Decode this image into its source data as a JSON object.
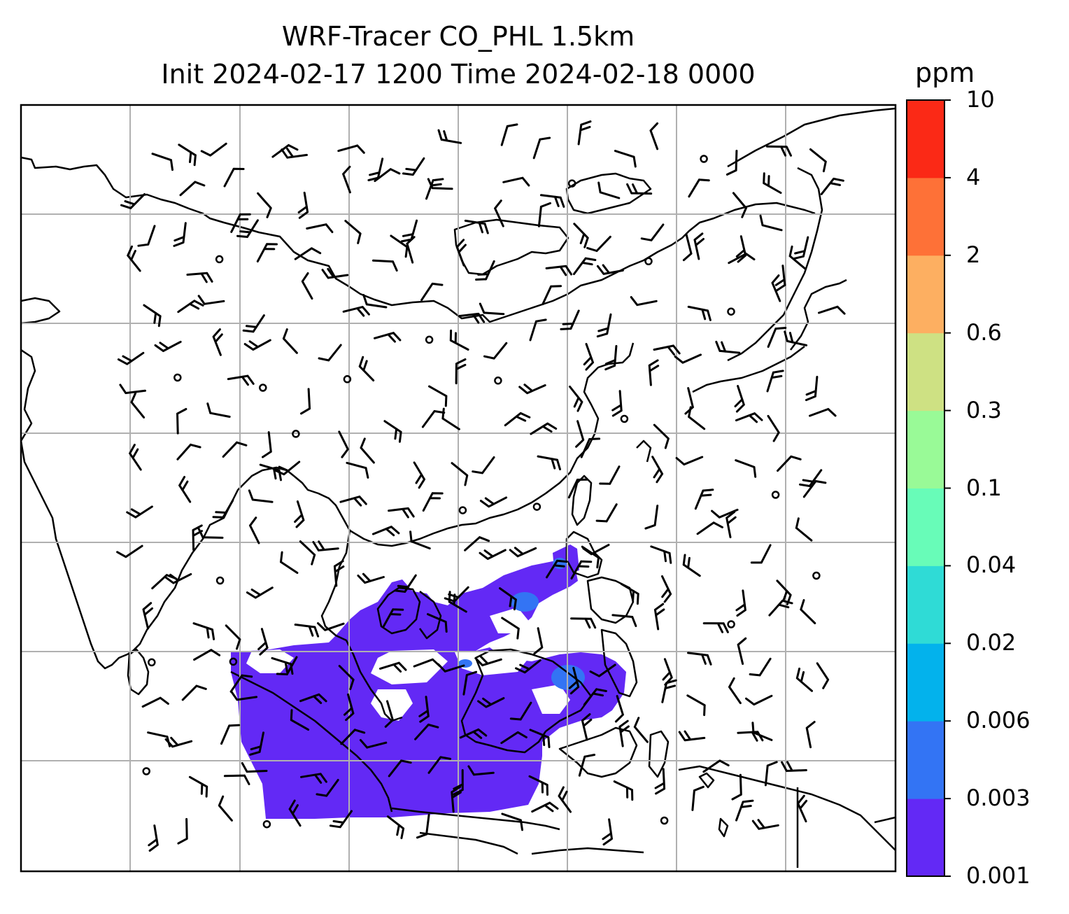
{
  "title": {
    "line1": "WRF-Tracer CO_PHL 1.5km",
    "line2": "Init 2024-02-17 1200 Time 2024-02-18 0000"
  },
  "colorbar": {
    "unit": "ppm",
    "levels": [
      "0.001",
      "0.003",
      "0.006",
      "0.02",
      "0.04",
      "0.1",
      "0.3",
      "0.6",
      "2",
      "4",
      "10"
    ],
    "colors": [
      "#6329f5",
      "#3374f4",
      "#03b2ec",
      "#2fdbd6",
      "#68fcb8",
      "#99fa97",
      "#cee183",
      "#fdaf61",
      "#fe7137",
      "#fb2916"
    ]
  },
  "map": {
    "coastline_color": "#000000",
    "gridline_color": "#b0b0b0",
    "plume_color": "#6329f5",
    "plume_hotspot_color": "#3374f4",
    "barb_color": "#000000",
    "calm_marker": "circle"
  }
}
